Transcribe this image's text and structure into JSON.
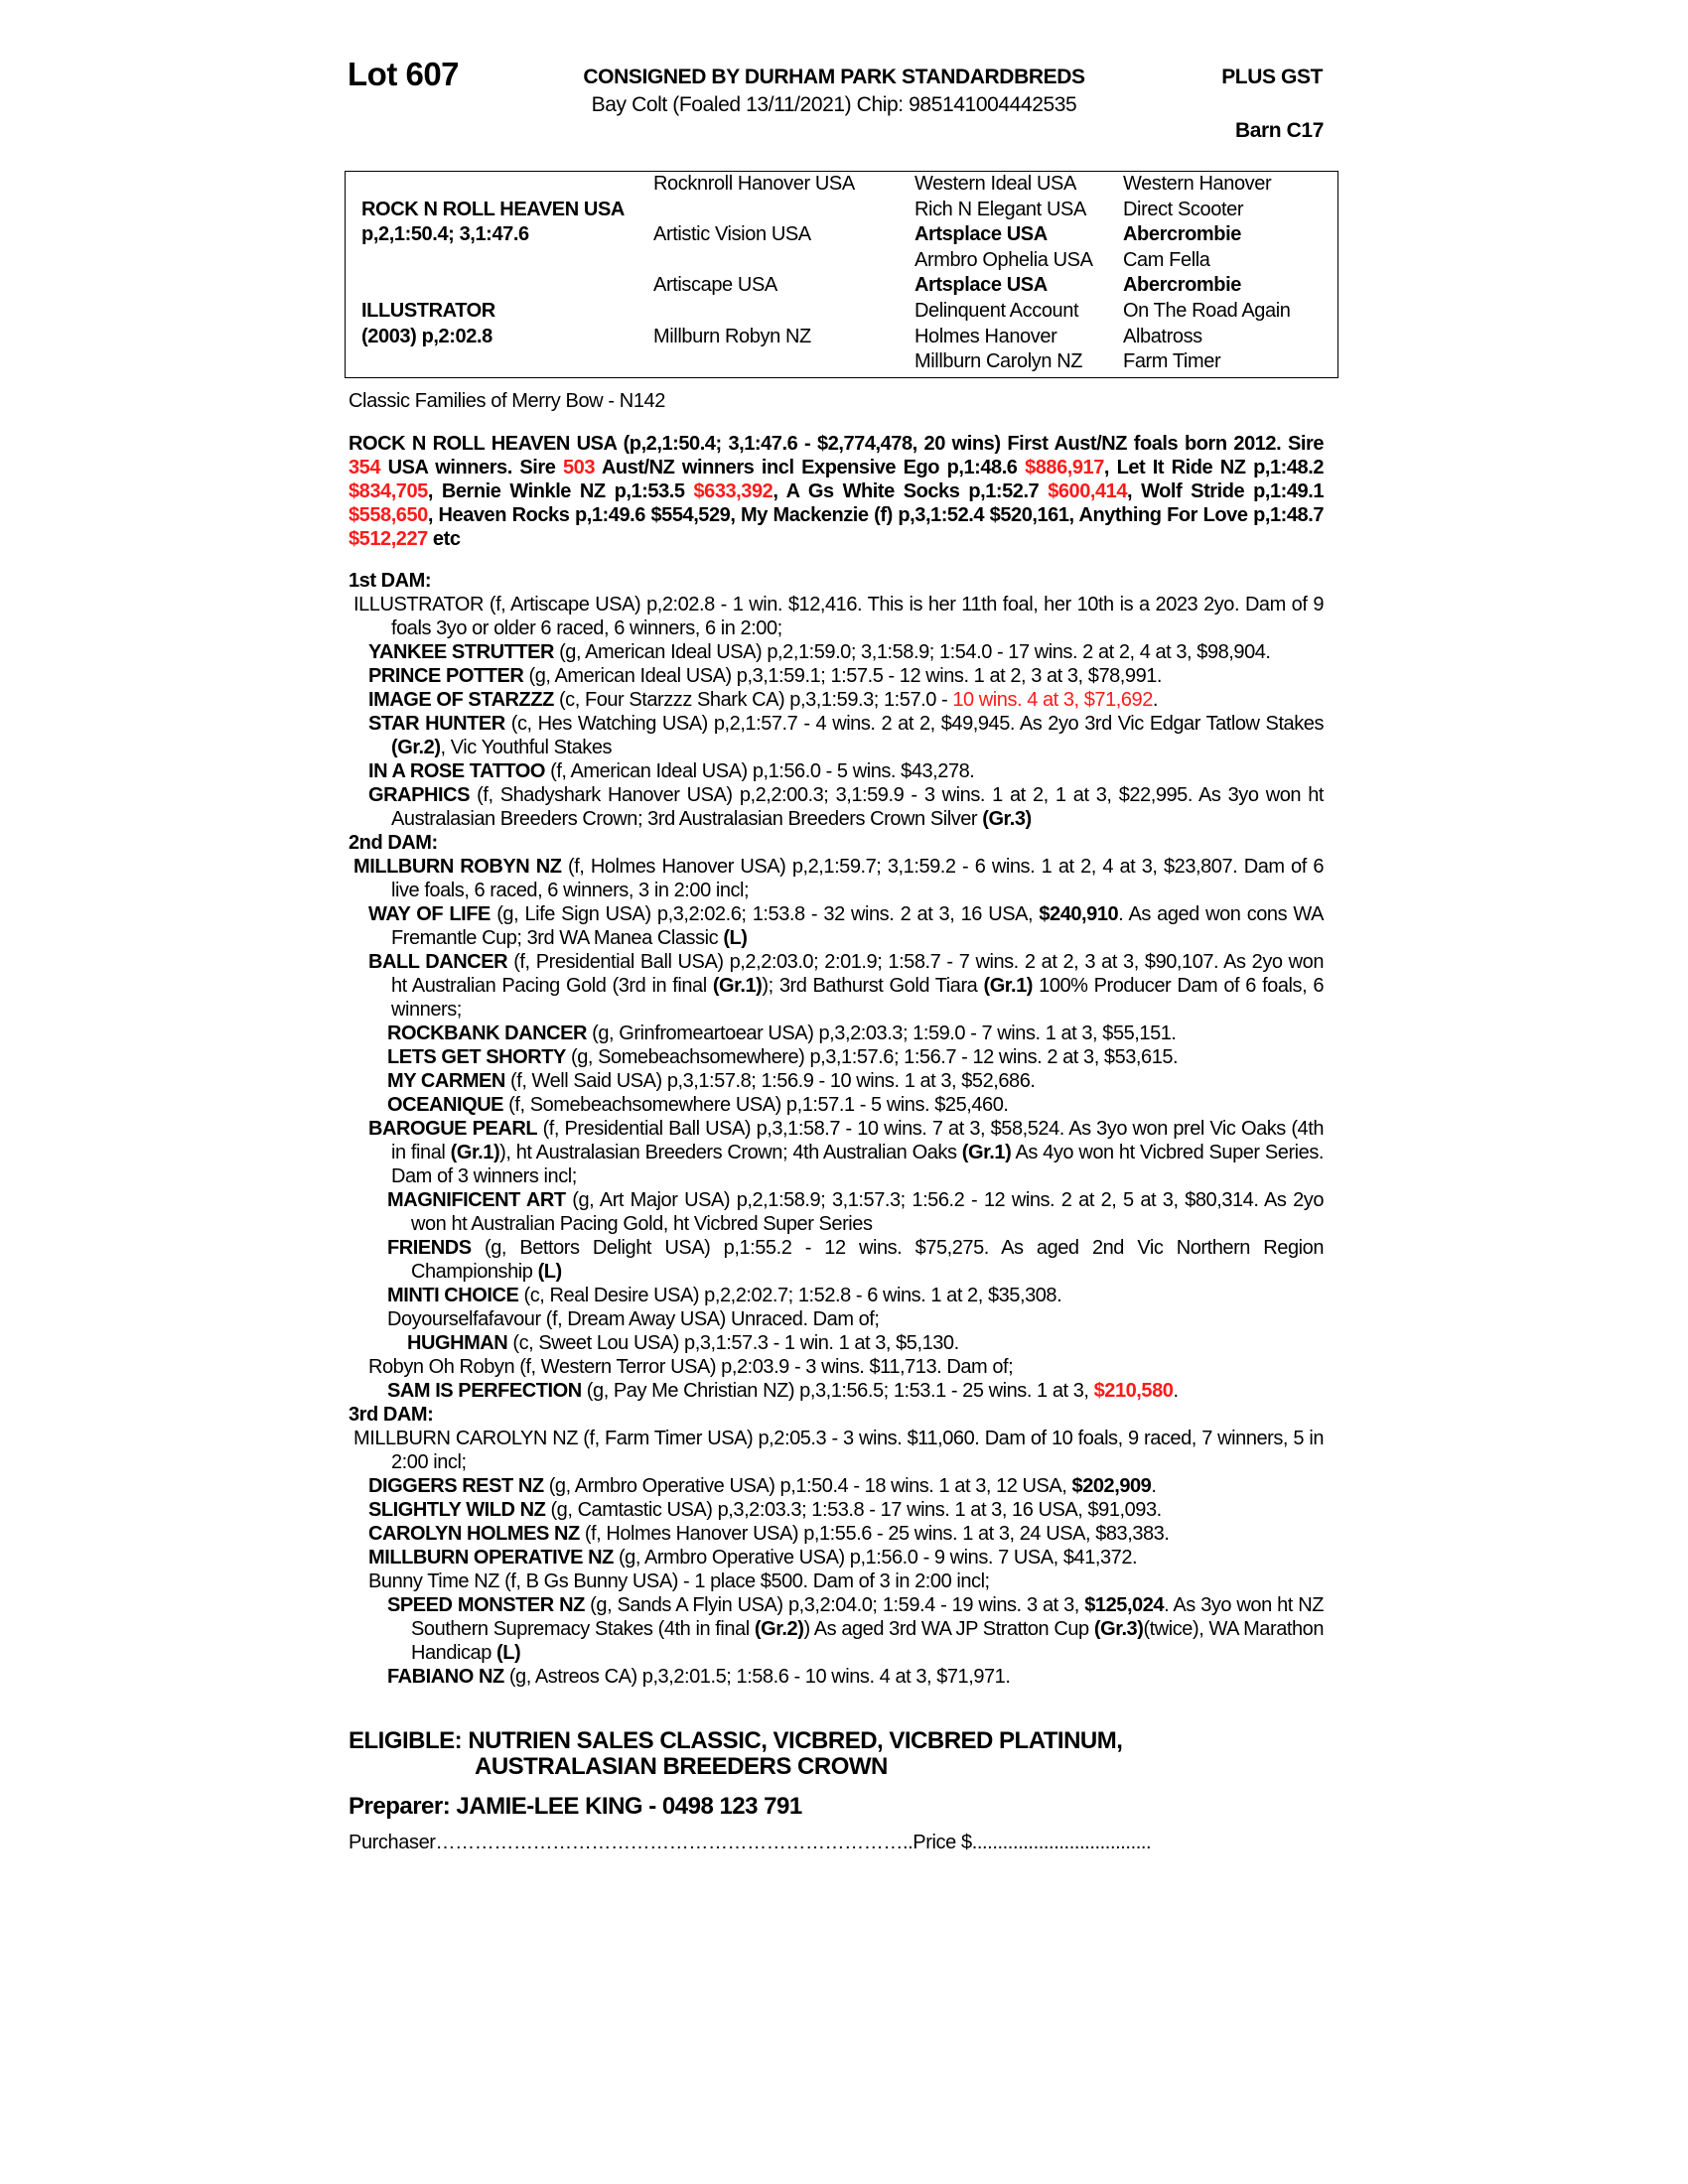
{
  "header": {
    "lot": "Lot 607",
    "consignor": "CONSIGNED BY DURHAM PARK STANDARDBREDS",
    "gst": "PLUS GST",
    "description": "Bay Colt (Foaled 13/11/2021) Chip: 985141004442535",
    "barn": "Barn C17"
  },
  "pedigree": {
    "col1": [
      {
        "t": "",
        "b": false
      },
      {
        "t": "ROCK N ROLL HEAVEN USA",
        "b": true
      },
      {
        "t": "p,2,1:50.4; 3,1:47.6",
        "b": true
      },
      {
        "t": "",
        "b": false
      },
      {
        "t": "",
        "b": false
      },
      {
        "t": "ILLUSTRATOR",
        "b": true
      },
      {
        "t": "(2003) p,2:02.8",
        "b": true
      },
      {
        "t": "",
        "b": false
      }
    ],
    "col2": [
      {
        "t": "Rocknroll Hanover USA",
        "b": false
      },
      {
        "t": "",
        "b": false
      },
      {
        "t": "Artistic Vision USA",
        "b": false
      },
      {
        "t": "",
        "b": false
      },
      {
        "t": "Artiscape USA",
        "b": false
      },
      {
        "t": "",
        "b": false
      },
      {
        "t": "Millburn Robyn NZ",
        "b": false
      },
      {
        "t": "",
        "b": false
      }
    ],
    "col3": [
      {
        "t": "Western Ideal USA",
        "b": false
      },
      {
        "t": "Rich N Elegant USA",
        "b": false
      },
      {
        "t": "Artsplace USA",
        "b": true
      },
      {
        "t": "Armbro Ophelia USA",
        "b": false
      },
      {
        "t": "Artsplace USA",
        "b": true
      },
      {
        "t": "Delinquent Account",
        "b": false
      },
      {
        "t": "Holmes Hanover",
        "b": false
      },
      {
        "t": "Millburn Carolyn NZ",
        "b": false
      }
    ],
    "col4": [
      {
        "t": "Western Hanover",
        "b": false
      },
      {
        "t": "Direct Scooter",
        "b": false
      },
      {
        "t": "Abercrombie",
        "b": true
      },
      {
        "t": "Cam Fella",
        "b": false
      },
      {
        "t": "Abercrombie",
        "b": true
      },
      {
        "t": "On The Road Again",
        "b": false
      },
      {
        "t": "Albatross",
        "b": false
      },
      {
        "t": "Farm Timer",
        "b": false
      }
    ]
  },
  "classic_families": "Classic Families of Merry Bow - N142",
  "sire_note": [
    {
      "s": "b",
      "t": "ROCK N ROLL HEAVEN USA (p,2,1:50.4; 3,1:47.6 - $2,774,478, 20 wins) First Aust/NZ foals born 2012. Sire "
    },
    {
      "s": "br",
      "t": "354"
    },
    {
      "s": "b",
      "t": " USA winners. Sire "
    },
    {
      "s": "br",
      "t": "503"
    },
    {
      "s": "b",
      "t": " Aust/NZ winners incl Expensive Ego p,1:48.6 "
    },
    {
      "s": "br",
      "t": "$886,917"
    },
    {
      "s": "b",
      "t": ", Let It Ride NZ p,1:48.2 "
    },
    {
      "s": "br",
      "t": "$834,705"
    },
    {
      "s": "b",
      "t": ", Bernie Winkle NZ p,1:53.5 "
    },
    {
      "s": "br",
      "t": "$633,392"
    },
    {
      "s": "b",
      "t": ", A Gs White Socks p,1:52.7 "
    },
    {
      "s": "br",
      "t": "$600,414"
    },
    {
      "s": "b",
      "t": ", Wolf Stride p,1:49.1 "
    },
    {
      "s": "br",
      "t": "$558,650"
    },
    {
      "s": "b",
      "t": ", Heaven Rocks p,1:49.6 $554,529, My Mackenzie (f) p,3,1:52.4 $520,161, Anything For Love p,1:48.7 "
    },
    {
      "s": "br",
      "t": "$512,227"
    },
    {
      "s": "b",
      "t": " etc"
    }
  ],
  "entries": [
    {
      "level": "h",
      "segs": [
        {
          "s": "h",
          "t": "1st DAM:"
        }
      ]
    },
    {
      "level": "0",
      "segs": [
        {
          "s": "n",
          "t": "ILLUSTRATOR (f, Artiscape USA) p,2:02.8 - 1 win. $12,416. This is her 11th foal, her 10th is a 2023 2yo. Dam of 9 foals 3yo or older 6 raced, 6 winners, 6 in 2:00;"
        }
      ]
    },
    {
      "level": "1",
      "segs": [
        {
          "s": "b",
          "t": "YANKEE STRUTTER"
        },
        {
          "s": "n",
          "t": " (g, American Ideal USA) p,2,1:59.0; 3,1:58.9; 1:54.0 - 17 wins. 2 at 2, 4 at 3, $98,904."
        }
      ]
    },
    {
      "level": "1",
      "segs": [
        {
          "s": "b",
          "t": "PRINCE POTTER"
        },
        {
          "s": "n",
          "t": " (g, American Ideal USA) p,3,1:59.1; 1:57.5 - 12 wins. 1 at 2, 3 at 3, $78,991."
        }
      ]
    },
    {
      "level": "1",
      "segs": [
        {
          "s": "b",
          "t": "IMAGE OF STARZZZ"
        },
        {
          "s": "n",
          "t": " (c, Four Starzzz Shark CA) p,3,1:59.3; 1:57.0 - "
        },
        {
          "s": "r",
          "t": "10 wins. 4 at 3, $71,692"
        },
        {
          "s": "n",
          "t": "."
        }
      ]
    },
    {
      "level": "1",
      "segs": [
        {
          "s": "b",
          "t": "STAR HUNTER"
        },
        {
          "s": "n",
          "t": " (c, Hes Watching USA) p,2,1:57.7 - 4 wins. 2 at 2, $49,945. As 2yo 3rd Vic Edgar Tatlow Stakes "
        },
        {
          "s": "b",
          "t": "(Gr.2)"
        },
        {
          "s": "n",
          "t": ", Vic Youthful Stakes"
        }
      ]
    },
    {
      "level": "1",
      "segs": [
        {
          "s": "b",
          "t": "IN A ROSE TATTOO"
        },
        {
          "s": "n",
          "t": " (f, American Ideal USA) p,1:56.0 - 5 wins. $43,278."
        }
      ]
    },
    {
      "level": "1",
      "segs": [
        {
          "s": "b",
          "t": "GRAPHICS"
        },
        {
          "s": "n",
          "t": " (f, Shadyshark Hanover USA) p,2,2:00.3; 3,1:59.9 - 3 wins. 1 at 2, 1 at 3, $22,995. As 3yo won ht Australasian Breeders Crown; 3rd Australasian Breeders Crown Silver "
        },
        {
          "s": "b",
          "t": "(Gr.3)"
        }
      ]
    },
    {
      "level": "h",
      "segs": [
        {
          "s": "h",
          "t": "2nd DAM:"
        }
      ]
    },
    {
      "level": "0",
      "segs": [
        {
          "s": "b",
          "t": "MILLBURN ROBYN NZ"
        },
        {
          "s": "n",
          "t": " (f, Holmes Hanover USA) p,2,1:59.7; 3,1:59.2 - 6 wins. 1 at 2, 4 at 3, $23,807. Dam of 6 live foals, 6 raced, 6 winners, 3 in 2:00 incl;"
        }
      ]
    },
    {
      "level": "1",
      "segs": [
        {
          "s": "b",
          "t": "WAY OF LIFE"
        },
        {
          "s": "n",
          "t": " (g, Life Sign USA) p,3,2:02.6; 1:53.8 - 32 wins. 2 at 3, 16 USA, "
        },
        {
          "s": "b",
          "t": "$240,910"
        },
        {
          "s": "n",
          "t": ". As aged won cons WA Fremantle Cup; 3rd WA Manea Classic "
        },
        {
          "s": "b",
          "t": "(L)"
        }
      ]
    },
    {
      "level": "1",
      "segs": [
        {
          "s": "b",
          "t": "BALL DANCER"
        },
        {
          "s": "n",
          "t": " (f, Presidential Ball USA) p,2,2:03.0; 2:01.9; 1:58.7 - 7 wins. 2 at 2, 3 at 3, $90,107. As 2yo won ht Australian Pacing Gold (3rd in final "
        },
        {
          "s": "b",
          "t": "(Gr.1)"
        },
        {
          "s": "n",
          "t": "); 3rd Bathurst Gold Tiara "
        },
        {
          "s": "b",
          "t": "(Gr.1)"
        },
        {
          "s": "n",
          "t": " 100% Producer Dam of 6 foals, 6 winners;"
        }
      ]
    },
    {
      "level": "2",
      "segs": [
        {
          "s": "b",
          "t": "ROCKBANK DANCER"
        },
        {
          "s": "n",
          "t": " (g, Grinfromeartoear USA) p,3,2:03.3; 1:59.0 - 7 wins. 1 at 3, $55,151."
        }
      ]
    },
    {
      "level": "2",
      "segs": [
        {
          "s": "b",
          "t": "LETS GET SHORTY"
        },
        {
          "s": "n",
          "t": " (g, Somebeachsomewhere) p,3,1:57.6; 1:56.7 - 12 wins. 2 at 3, $53,615."
        }
      ]
    },
    {
      "level": "2",
      "segs": [
        {
          "s": "b",
          "t": "MY CARMEN"
        },
        {
          "s": "n",
          "t": " (f, Well Said USA) p,3,1:57.8; 1:56.9 - 10 wins. 1 at 3, $52,686."
        }
      ]
    },
    {
      "level": "2",
      "segs": [
        {
          "s": "b",
          "t": "OCEANIQUE"
        },
        {
          "s": "n",
          "t": " (f, Somebeachsomewhere USA) p,1:57.1 - 5 wins. $25,460."
        }
      ]
    },
    {
      "level": "1",
      "segs": [
        {
          "s": "b",
          "t": "BAROGUE PEARL"
        },
        {
          "s": "n",
          "t": " (f, Presidential Ball USA) p,3,1:58.7 - 10 wins. 7 at 3, $58,524. As 3yo won prel Vic Oaks (4th in final "
        },
        {
          "s": "b",
          "t": "(Gr.1)"
        },
        {
          "s": "n",
          "t": "), ht Australasian Breeders Crown; 4th Australian Oaks "
        },
        {
          "s": "b",
          "t": "(Gr.1)"
        },
        {
          "s": "n",
          "t": " As 4yo won ht Vicbred Super Series. Dam of 3 winners incl;"
        }
      ]
    },
    {
      "level": "2",
      "segs": [
        {
          "s": "b",
          "t": "MAGNIFICENT ART"
        },
        {
          "s": "n",
          "t": " (g, Art Major USA) p,2,1:58.9; 3,1:57.3; 1:56.2 - 12 wins. 2 at 2, 5 at 3, $80,314. As 2yo won ht Australian Pacing Gold, ht Vicbred Super Series"
        }
      ]
    },
    {
      "level": "2",
      "segs": [
        {
          "s": "b",
          "t": "FRIENDS"
        },
        {
          "s": "n",
          "t": " (g, Bettors Delight USA) p,1:55.2 - 12 wins. $75,275. As aged 2nd Vic Northern Region Championship "
        },
        {
          "s": "b",
          "t": "(L)"
        }
      ]
    },
    {
      "level": "2",
      "segs": [
        {
          "s": "b",
          "t": "MINTI CHOICE"
        },
        {
          "s": "n",
          "t": " (c, Real Desire USA) p,2,2:02.7; 1:52.8 - 6 wins. 1 at 2, $35,308."
        }
      ]
    },
    {
      "level": "2",
      "segs": [
        {
          "s": "n",
          "t": "Doyourselfafavour (f, Dream Away USA) Unraced. Dam of;"
        }
      ]
    },
    {
      "level": "3",
      "segs": [
        {
          "s": "b",
          "t": "HUGHMAN"
        },
        {
          "s": "n",
          "t": " (c, Sweet Lou USA) p,3,1:57.3 - 1 win. 1 at 3, $5,130."
        }
      ]
    },
    {
      "level": "1",
      "segs": [
        {
          "s": "n",
          "t": "Robyn Oh Robyn (f, Western Terror USA) p,2:03.9 - 3 wins. $11,713. Dam of;"
        }
      ]
    },
    {
      "level": "2",
      "segs": [
        {
          "s": "b",
          "t": "SAM IS PERFECTION"
        },
        {
          "s": "n",
          "t": " (g, Pay Me Christian NZ) p,3,1:56.5; 1:53.1 - 25 wins. 1 at 3, "
        },
        {
          "s": "br",
          "t": "$210,580"
        },
        {
          "s": "n",
          "t": "."
        }
      ]
    },
    {
      "level": "h",
      "segs": [
        {
          "s": "h",
          "t": "3rd DAM:"
        }
      ]
    },
    {
      "level": "0",
      "segs": [
        {
          "s": "n",
          "t": "MILLBURN CAROLYN NZ (f, Farm Timer USA) p,2:05.3 - 3 wins. $11,060. Dam of 10 foals, 9 raced, 7 winners, 5 in 2:00 incl;"
        }
      ]
    },
    {
      "level": "1",
      "segs": [
        {
          "s": "b",
          "t": "DIGGERS REST NZ"
        },
        {
          "s": "n",
          "t": " (g, Armbro Operative USA) p,1:50.4 - 18 wins. 1 at 3, 12 USA, "
        },
        {
          "s": "b",
          "t": "$202,909"
        },
        {
          "s": "n",
          "t": "."
        }
      ]
    },
    {
      "level": "1",
      "segs": [
        {
          "s": "b",
          "t": "SLIGHTLY WILD NZ"
        },
        {
          "s": "n",
          "t": " (g, Camtastic USA) p,3,2:03.3; 1:53.8 - 17 wins. 1 at 3, 16 USA, $91,093."
        }
      ]
    },
    {
      "level": "1",
      "segs": [
        {
          "s": "b",
          "t": "CAROLYN HOLMES NZ"
        },
        {
          "s": "n",
          "t": " (f, Holmes Hanover USA) p,1:55.6 - 25 wins. 1 at 3, 24 USA, $83,383."
        }
      ]
    },
    {
      "level": "1",
      "segs": [
        {
          "s": "b",
          "t": "MILLBURN OPERATIVE NZ"
        },
        {
          "s": "n",
          "t": " (g, Armbro Operative USA) p,1:56.0 - 9 wins. 7 USA, $41,372."
        }
      ]
    },
    {
      "level": "1",
      "segs": [
        {
          "s": "n",
          "t": "Bunny Time NZ (f, B Gs Bunny USA) - 1 place $500. Dam of 3 in 2:00 incl;"
        }
      ]
    },
    {
      "level": "2",
      "segs": [
        {
          "s": "b",
          "t": "SPEED MONSTER NZ"
        },
        {
          "s": "n",
          "t": " (g, Sands A Flyin USA) p,3,2:04.0; 1:59.4 - 19 wins. 3 at 3, "
        },
        {
          "s": "b",
          "t": "$125,024"
        },
        {
          "s": "n",
          "t": ". As 3yo won ht NZ Southern Supremacy Stakes (4th in final "
        },
        {
          "s": "b",
          "t": "(Gr.2)"
        },
        {
          "s": "n",
          "t": ") As aged 3rd WA JP Stratton Cup "
        },
        {
          "s": "b",
          "t": "(Gr.3)"
        },
        {
          "s": "n",
          "t": "(twice), WA Marathon Handicap "
        },
        {
          "s": "b",
          "t": "(L)"
        }
      ]
    },
    {
      "level": "2",
      "segs": [
        {
          "s": "b",
          "t": "FABIANO NZ"
        },
        {
          "s": "n",
          "t": " (g, Astreos CA) p,3,2:01.5; 1:58.6 - 10 wins. 4 at 3, $71,971."
        }
      ]
    }
  ],
  "eligible": {
    "line1": "ELIGIBLE: NUTRIEN SALES CLASSIC, VICBRED, VICBRED PLATINUM,",
    "line2": "AUSTRALASIAN BREEDERS CROWN"
  },
  "preparer": "Preparer: JAMIE-LEE KING - 0498 123 791",
  "purchaser_line": "Purchaser………………………………………………………………..Price $...................................",
  "colors": {
    "highlight": "#ff1a1a",
    "text": "#000000"
  }
}
